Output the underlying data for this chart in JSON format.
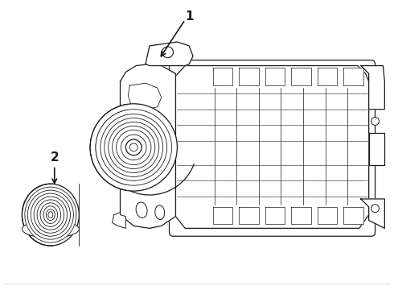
{
  "background_color": "#ffffff",
  "line_color": "#1a1a1a",
  "label1": "1",
  "label2": "2",
  "lw": 0.9,
  "figsize": [
    4.9,
    3.6
  ],
  "dpi": 100
}
